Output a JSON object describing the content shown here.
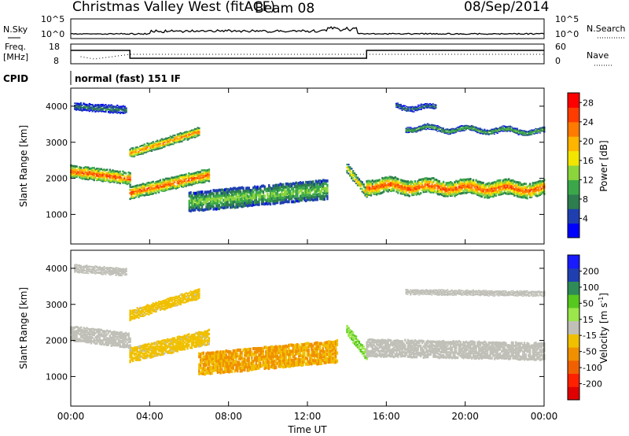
{
  "header": {
    "station": "Christmas Valley West (fitACF)",
    "beam": "Beam 08",
    "date": "08/Sep/2014"
  },
  "strip_nsky": {
    "label": "N.Sky",
    "ticks": [
      "10^5",
      "10^0"
    ],
    "right_label": "N.Search",
    "right_ticks": [
      "10^5",
      "10^0"
    ]
  },
  "strip_freq": {
    "label_line1": "Freq.",
    "label_line2": "[MHz]",
    "ticks": [
      "18",
      "8"
    ],
    "right_label": "Nave",
    "right_ticks": [
      "60",
      "0"
    ]
  },
  "cpid": {
    "label": "CPID",
    "mode": "normal (fast) 151 IF"
  },
  "colors": {
    "power_scale": [
      "#0000ff",
      "#1f3fb0",
      "#2e7d4f",
      "#3aa84a",
      "#8cd43c",
      "#f2e600",
      "#ffb400",
      "#ff7a00",
      "#ff3c00",
      "#ff0000"
    ],
    "velocity_scale": [
      "#1a1aff",
      "#1f3fb0",
      "#2e8b57",
      "#56c81e",
      "#9ae64b",
      "#c0c0b8",
      "#f0c000",
      "#f09000",
      "#f06000",
      "#ff2000",
      "#e00000"
    ],
    "ground_scatter": "#c0c0b8"
  },
  "chart_data": [
    {
      "type": "heatmap",
      "title": "Power",
      "xlabel": "Time UT",
      "ylabel": "Slant Range [km]",
      "x_ticks": [
        "00:00",
        "04:00",
        "08:00",
        "12:00",
        "16:00",
        "20:00",
        "00:00"
      ],
      "x_range_hours": [
        0,
        24
      ],
      "y_ticks": [
        "1000",
        "2000",
        "3000",
        "4000"
      ],
      "y_range_km": [
        180,
        4500
      ],
      "colorbar_label": "Power [dB]",
      "colorbar_ticks": [
        "4",
        "8",
        "12",
        "16",
        "20",
        "24",
        "28"
      ],
      "colorbar_range": [
        0,
        30
      ],
      "bands": [
        {
          "x": [
            0.0,
            3.0
          ],
          "y_center_start": 2200,
          "y_center_end": 2000,
          "width_km": 250,
          "level_dB": 26
        },
        {
          "x": [
            3.0,
            7.0
          ],
          "y_center_start": 1600,
          "y_center_end": 2100,
          "width_km": 250,
          "level_dB": 26
        },
        {
          "x": [
            3.0,
            6.5
          ],
          "y_center_start": 2700,
          "y_center_end": 3300,
          "width_km": 180,
          "level_dB": 24
        },
        {
          "x": [
            0.2,
            2.8
          ],
          "y_center_start": 4000,
          "y_center_end": 3900,
          "width_km": 150,
          "level_dB": 8
        },
        {
          "x": [
            6.0,
            13.0
          ],
          "y_center_start": 1350,
          "y_center_end": 1700,
          "width_km": 400,
          "level_dB": 14
        },
        {
          "x": [
            14.0,
            15.0
          ],
          "y_center_start": 2300,
          "y_center_end": 1600,
          "width_km": 200,
          "level_dB": 20
        },
        {
          "x": [
            15.0,
            24.0
          ],
          "y_center_start": 1800,
          "y_center_end": 1700,
          "width_km": 300,
          "level_dB": 26
        },
        {
          "x": [
            17.0,
            24.0
          ],
          "y_center_start": 3400,
          "y_center_end": 3300,
          "width_km": 100,
          "level_dB": 12
        },
        {
          "x": [
            16.5,
            18.5
          ],
          "y_center_start": 4000,
          "y_center_end": 3950,
          "width_km": 100,
          "level_dB": 8
        }
      ]
    },
    {
      "type": "heatmap",
      "title": "Velocity",
      "xlabel": "Time UT",
      "ylabel": "Slant Range [km]",
      "x_ticks": [
        "00:00",
        "04:00",
        "08:00",
        "12:00",
        "16:00",
        "20:00",
        "00:00"
      ],
      "x_range_hours": [
        0,
        24
      ],
      "y_ticks": [
        "1000",
        "2000",
        "3000",
        "4000"
      ],
      "y_range_km": [
        180,
        4500
      ],
      "colorbar_label": "Velocity [m s^-1]",
      "colorbar_ticks": [
        "200",
        "100",
        "50",
        "15",
        "-15",
        "-50",
        "-100",
        "-200"
      ],
      "colorbar_range": [
        -250,
        250
      ],
      "bands": [
        {
          "x": [
            0.0,
            3.0
          ],
          "y_center_start": 2200,
          "y_center_end": 2000,
          "width_km": 300,
          "velocity": 0
        },
        {
          "x": [
            3.0,
            7.0
          ],
          "y_center_start": 1600,
          "y_center_end": 2100,
          "width_km": 300,
          "velocity": -40
        },
        {
          "x": [
            3.0,
            6.5
          ],
          "y_center_start": 2700,
          "y_center_end": 3300,
          "width_km": 200,
          "velocity": -40
        },
        {
          "x": [
            0.2,
            2.8
          ],
          "y_center_start": 4000,
          "y_center_end": 3900,
          "width_km": 150,
          "velocity": 0
        },
        {
          "x": [
            6.5,
            13.5
          ],
          "y_center_start": 1350,
          "y_center_end": 1700,
          "width_km": 450,
          "velocity": -70
        },
        {
          "x": [
            14.0,
            15.0
          ],
          "y_center_start": 2300,
          "y_center_end": 1600,
          "width_km": 200,
          "velocity": 60
        },
        {
          "x": [
            15.0,
            24.0
          ],
          "y_center_start": 1800,
          "y_center_end": 1700,
          "width_km": 350,
          "velocity": 0
        },
        {
          "x": [
            17.0,
            24.0
          ],
          "y_center_start": 3350,
          "y_center_end": 3300,
          "width_km": 100,
          "velocity": 0
        }
      ]
    }
  ]
}
